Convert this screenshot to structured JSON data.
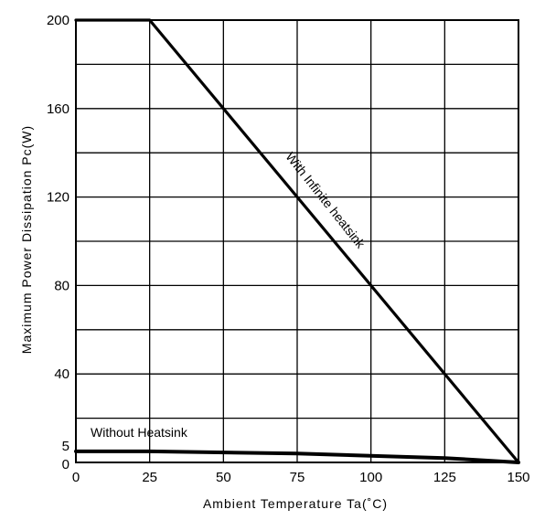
{
  "chart_data": {
    "type": "line",
    "title": "",
    "xlabel": "Ambient Temperature Ta(˚C)",
    "ylabel": "Maximum Power Dissipation Pc(W)",
    "xlim": [
      0,
      150
    ],
    "ylim": [
      0,
      200
    ],
    "x_ticks": [
      0,
      25,
      50,
      75,
      100,
      125,
      150
    ],
    "y_ticks": [
      0,
      5,
      40,
      80,
      120,
      160,
      200
    ],
    "x_grid": [
      0,
      25,
      50,
      75,
      100,
      125,
      150
    ],
    "y_grid": [
      0,
      20,
      40,
      60,
      80,
      100,
      120,
      140,
      160,
      180,
      200
    ],
    "grid": true,
    "series": [
      {
        "name": "With Infinite heatsink",
        "x": [
          0,
          25,
          150
        ],
        "y": [
          200,
          200,
          0
        ],
        "stroke_width": 3.2
      },
      {
        "name": "Without Heatsink",
        "x": [
          0,
          25,
          75,
          125,
          150
        ],
        "y": [
          5,
          5,
          4,
          2,
          0
        ],
        "stroke_width": 4
      }
    ],
    "annotations": [
      {
        "text": "With Infinite heatsink"
      },
      {
        "text": "Without Heatsink"
      }
    ]
  }
}
